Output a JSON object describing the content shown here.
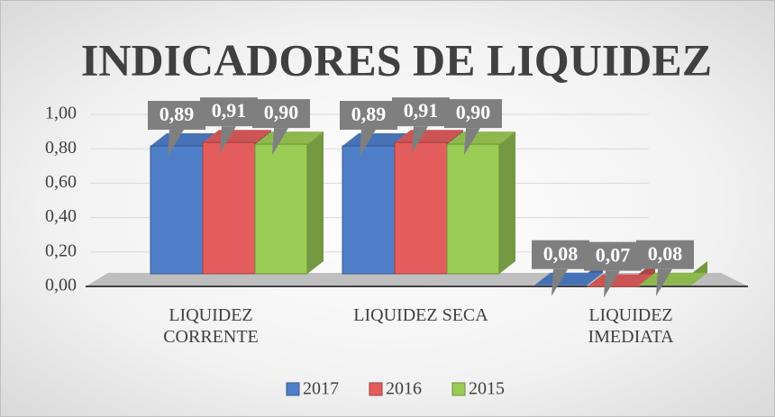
{
  "chart_data": {
    "type": "bar3d",
    "title": "INDICADORES DE LIQUIDEZ",
    "categories": [
      "LIQUIDEZ CORRENTE",
      "LIQUIDEZ SECA",
      "LIQUIDEZ IMEDIATA"
    ],
    "series": [
      {
        "name": "2017",
        "color": "#4f7fc9",
        "values": [
          0.89,
          0.89,
          0.08
        ],
        "value_labels": [
          "0,89",
          "0,89",
          "0,08"
        ]
      },
      {
        "name": "2016",
        "color": "#e35d5d",
        "values": [
          0.91,
          0.91,
          0.07
        ],
        "value_labels": [
          "0,91",
          "0,91",
          "0,07"
        ]
      },
      {
        "name": "2015",
        "color": "#9bcc55",
        "values": [
          0.9,
          0.9,
          0.08
        ],
        "value_labels": [
          "0,90",
          "0,90",
          "0,08"
        ]
      }
    ],
    "ylim": [
      0,
      1
    ],
    "yticks": [
      {
        "value": 0,
        "label": "0,00"
      },
      {
        "value": 0.2,
        "label": "0,20"
      },
      {
        "value": 0.4,
        "label": "0,40"
      },
      {
        "value": 0.6,
        "label": "0,60"
      },
      {
        "value": 0.8,
        "label": "0,80"
      },
      {
        "value": 1,
        "label": "1,00"
      }
    ],
    "grid": true,
    "legend": "bottom"
  }
}
